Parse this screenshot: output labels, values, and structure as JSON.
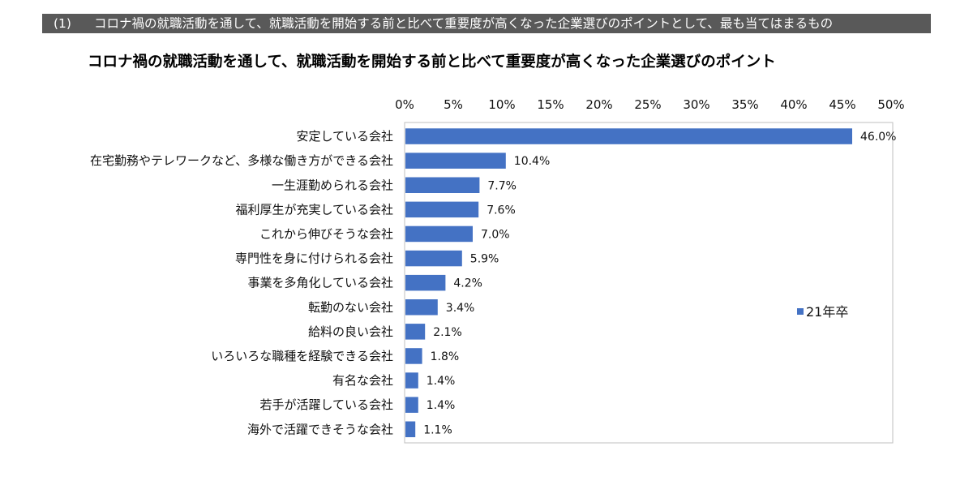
{
  "header": {
    "number": "(1)",
    "text": "コロナ禍の就職活動を通して、就職活動を開始する前と比べて重要度が高くなった企業選びのポイントとして、最も当てはまるもの"
  },
  "chart_data": {
    "type": "bar",
    "orientation": "horizontal",
    "title": "コロナ禍の就職活動を通して、就職活動を開始する前と比べて重要度が高くなった企業選びのポイント",
    "categories": [
      "安定している会社",
      "在宅勤務やテレワークなど、多様な働き方ができる会社",
      "一生涯勤められる会社",
      "福利厚生が充実している会社",
      "これから伸びそうな会社",
      "専門性を身に付けられる会社",
      "事業を多角化している会社",
      "転勤のない会社",
      "給料の良い会社",
      "いろいろな職種を経験できる会社",
      "有名な会社",
      "若手が活躍している会社",
      "海外で活躍できそうな会社"
    ],
    "series": [
      {
        "name": "21年卒",
        "color": "#4472C4",
        "values": [
          46.0,
          10.4,
          7.7,
          7.6,
          7.0,
          5.9,
          4.2,
          3.4,
          2.1,
          1.8,
          1.4,
          1.4,
          1.1
        ],
        "labels": [
          "46.0%",
          "10.4%",
          "7.7%",
          "7.6%",
          "7.0%",
          "5.9%",
          "4.2%",
          "3.4%",
          "2.1%",
          "1.8%",
          "1.4%",
          "1.4%",
          "1.1%"
        ]
      }
    ],
    "xlim": [
      0,
      50
    ],
    "x_ticks": [
      "0%",
      "5%",
      "10%",
      "15%",
      "20%",
      "25%",
      "30%",
      "35%",
      "40%",
      "45%",
      "50%"
    ],
    "x_axis_position": "top",
    "legend_position": "right",
    "grid": false
  }
}
